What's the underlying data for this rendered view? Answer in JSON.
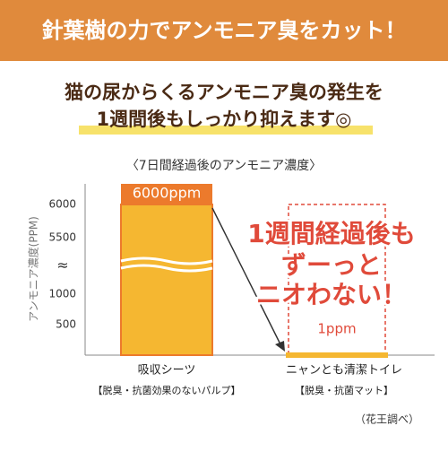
{
  "banner": "針葉樹の力でアンモニア臭をカット！",
  "headline": [
    "猫の尿からくるアンモニア臭の発生を",
    "1週間後もしっかり抑えます◎"
  ],
  "callout": [
    "1週間経過後も",
    "ずーっと",
    "ニオわない！"
  ],
  "footnote": "（花王調べ）",
  "chart_data": {
    "type": "bar",
    "title": "〈7日間経過後のアンモニア濃度〉",
    "y_label": "アンモニア濃度(PPM)",
    "categories": [
      "吸収シーツ",
      "ニャンとも清潔トイレ"
    ],
    "category_notes": [
      "【脱臭・抗菌効果のないパルプ】",
      "【脱臭・抗菌マット】"
    ],
    "values": [
      6000,
      1
    ],
    "value_labels": [
      "6000ppm",
      "1ppm"
    ],
    "colors": [
      "#f5b731",
      "#f5b731"
    ],
    "ylim": [
      0,
      6000
    ],
    "yticks": [
      500,
      1000,
      5500,
      6000
    ],
    "ybreak": [
      1000,
      5500
    ],
    "ybreak_label": "≈"
  }
}
